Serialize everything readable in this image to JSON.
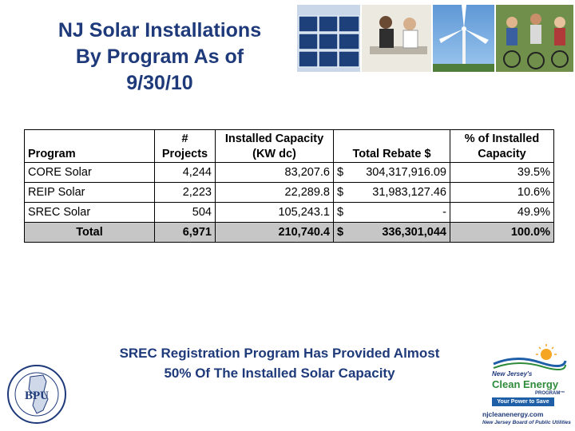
{
  "title": {
    "line1": "NJ Solar Installations",
    "line2": "By Program As of",
    "line3": "9/30/10"
  },
  "table": {
    "headers": {
      "program": "Program",
      "projects_l1": "#",
      "projects_l2": "Projects",
      "capacity_l1": "Installed Capacity",
      "capacity_l2": "(KW dc)",
      "rebate": "Total Rebate $",
      "pct_l1": "% of Installed",
      "pct_l2": "Capacity"
    },
    "rows": [
      {
        "program": "CORE Solar",
        "projects": "4,244",
        "capacity": "83,207.6",
        "currency": "$",
        "rebate": "304,317,916.09",
        "pct": "39.5%"
      },
      {
        "program": "REIP Solar",
        "projects": "2,223",
        "capacity": "22,289.8",
        "currency": "$",
        "rebate": "31,983,127.46",
        "pct": "10.6%"
      },
      {
        "program": "SREC Solar",
        "projects": "504",
        "capacity": "105,243.1",
        "currency": "$",
        "rebate": "-",
        "pct": "49.9%"
      }
    ],
    "total": {
      "label": "Total",
      "projects": "6,971",
      "capacity": "210,740.4",
      "currency": "$",
      "rebate": "336,301,044",
      "pct": "100.0%"
    }
  },
  "caption": {
    "line1": "SREC Registration Program Has Provided Almost",
    "line2": "50% Of The Installed Solar Capacity"
  },
  "bpu_logo": {
    "text": "BPU"
  },
  "cep_logo": {
    "line1": "New Jersey's",
    "line2": "Clean Energy",
    "line3": "PROGRAM™",
    "tagline": "Your Power to Save",
    "url": "njcleanenergy.com",
    "board": "New Jersey Board of Public Utilities"
  },
  "colors": {
    "title": "#1f3a7a",
    "total_row": "#c6c6c6",
    "logo_green": "#2e8b3a",
    "logo_blue": "#1f5fa8",
    "sun": "#f5a623"
  }
}
